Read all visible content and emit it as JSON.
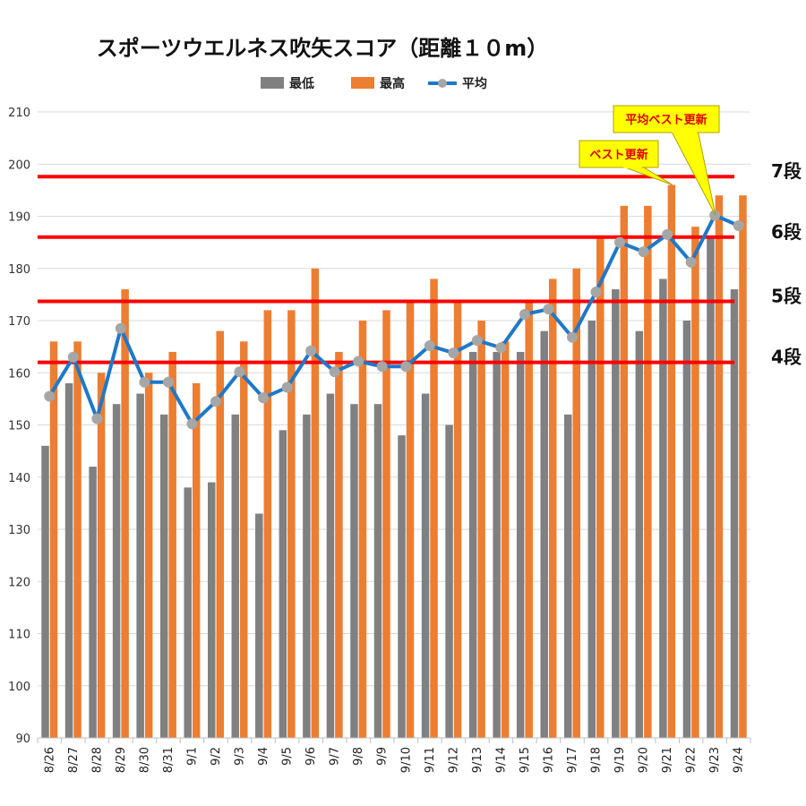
{
  "chart_data": {
    "type": "bar",
    "title": "スポーツウエルネス吹矢スコア（距離１０m）",
    "categories": [
      "8/26",
      "8/27",
      "8/28",
      "8/29",
      "8/30",
      "8/31",
      "9/1",
      "9/2",
      "9/3",
      "9/4",
      "9/5",
      "9/6",
      "9/7",
      "9/8",
      "9/9",
      "9/10",
      "9/11",
      "9/12",
      "9/13",
      "9/14",
      "9/15",
      "9/16",
      "9/17",
      "9/18",
      "9/19",
      "9/20",
      "9/21",
      "9/22",
      "9/23",
      "9/24"
    ],
    "series": [
      {
        "name": "最低",
        "kind": "bar",
        "color": "#808080",
        "values": [
          146,
          158,
          142,
          154,
          156,
          152,
          138,
          139,
          152,
          133,
          149,
          152,
          156,
          154,
          154,
          148,
          156,
          150,
          164,
          164,
          164,
          168,
          152,
          170,
          176,
          168,
          178,
          170,
          186,
          176
        ]
      },
      {
        "name": "最高",
        "kind": "bar",
        "color": "#ed7d31",
        "values": [
          166,
          166,
          160,
          176,
          160,
          164,
          158,
          168,
          166,
          172,
          172,
          180,
          164,
          170,
          172,
          174,
          178,
          174,
          170,
          166,
          174,
          178,
          180,
          186,
          192,
          192,
          196,
          188,
          194,
          194
        ]
      },
      {
        "name": "平均",
        "kind": "line",
        "color": "#1f78c8",
        "values": [
          155.5,
          163,
          151.2,
          168.5,
          158.2,
          158.2,
          150.2,
          154.5,
          160.2,
          155.2,
          157.2,
          164.2,
          160.2,
          162.2,
          161.2,
          161.2,
          165.2,
          163.8,
          166.2,
          164.8,
          171.2,
          172.2,
          166.8,
          175.5,
          185,
          183.2,
          186.5,
          181.2,
          190.2,
          188.2
        ]
      }
    ],
    "ylim": [
      90,
      210
    ],
    "yticks": [
      90,
      100,
      110,
      120,
      130,
      140,
      150,
      160,
      170,
      180,
      190,
      200,
      210
    ],
    "grid": true,
    "legend_position": "top",
    "levels": [
      {
        "label": "4段",
        "value": 162
      },
      {
        "label": "5段",
        "value": 173.7
      },
      {
        "label": "6段",
        "value": 186
      },
      {
        "label": "7段",
        "value": 197.6
      }
    ],
    "level_color": "#ff0000",
    "annotations": [
      {
        "text": "ベスト更新",
        "category": "9/21",
        "series": "最高"
      },
      {
        "text": "平均ベスト更新",
        "category": "9/23",
        "series": "平均"
      }
    ],
    "callout_fill": "#ffff00"
  }
}
